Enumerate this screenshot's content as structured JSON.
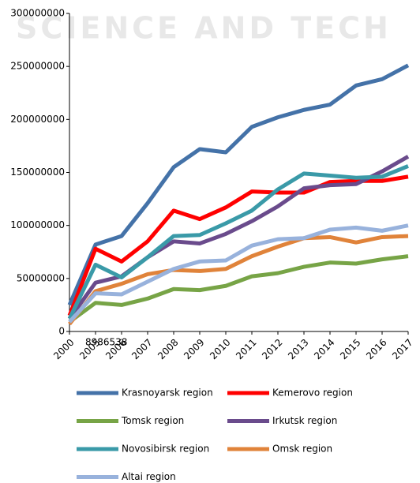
{
  "chart_data": {
    "type": "line",
    "watermark": "SCIENCE AND TECH",
    "annotation": "8986538",
    "categories": [
      "2000",
      "2005",
      "2006",
      "2007",
      "2008",
      "2009",
      "2010",
      "2011",
      "2012",
      "2013",
      "2014",
      "2015",
      "2016",
      "2017"
    ],
    "ylim": [
      0,
      300000000
    ],
    "yticks": [
      0,
      50000000,
      100000000,
      150000000,
      200000000,
      250000000,
      300000000
    ],
    "series": [
      {
        "name": "Krasnoyarsk region",
        "color": "#4472a8",
        "values": [
          25000000,
          82000000,
          90000000,
          121000000,
          155000000,
          172000000,
          169000000,
          193000000,
          202000000,
          209000000,
          214000000,
          232000000,
          238000000,
          251000000
        ]
      },
      {
        "name": "Kemerovo region",
        "color": "#ff0000",
        "values": [
          15000000,
          78000000,
          66000000,
          85000000,
          114000000,
          106000000,
          117000000,
          132000000,
          131000000,
          131000000,
          141000000,
          142000000,
          142000000,
          146000000
        ]
      },
      {
        "name": "Tomsk region",
        "color": "#77a446",
        "values": [
          9000000,
          27000000,
          25000000,
          31000000,
          40000000,
          39000000,
          43000000,
          52000000,
          55000000,
          61000000,
          65000000,
          64000000,
          68000000,
          71000000
        ]
      },
      {
        "name": "Irkutsk region",
        "color": "#6a4b8c",
        "values": [
          12000000,
          46000000,
          52000000,
          70000000,
          85000000,
          83000000,
          92000000,
          104000000,
          118000000,
          135000000,
          138000000,
          139000000,
          151000000,
          165000000
        ]
      },
      {
        "name": "Novosibirsk region",
        "color": "#3a9aa8",
        "values": [
          12000000,
          63000000,
          51000000,
          70000000,
          90000000,
          91000000,
          102000000,
          114000000,
          134000000,
          149000000,
          147000000,
          145000000,
          146000000,
          156000000
        ]
      },
      {
        "name": "Omsk region",
        "color": "#e0833a",
        "values": [
          7000000,
          38000000,
          45000000,
          54000000,
          58000000,
          57000000,
          59000000,
          71000000,
          80000000,
          88000000,
          89000000,
          84000000,
          89000000,
          90000000
        ]
      },
      {
        "name": "Altai region",
        "color": "#98b2dc",
        "values": [
          9000000,
          36000000,
          35000000,
          47000000,
          59000000,
          66000000,
          67000000,
          81000000,
          87000000,
          88000000,
          96000000,
          98000000,
          95000000,
          100000000
        ]
      }
    ]
  }
}
